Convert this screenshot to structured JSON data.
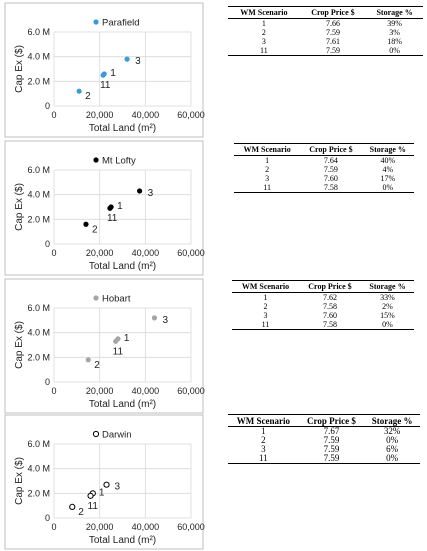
{
  "panels": [
    {
      "chart": {
        "type": "scatter",
        "legend": "Parafield",
        "marker": "filled",
        "color": "#3a9bd9",
        "xlabel": "Total Land (m²)",
        "ylabel": "Cap Ex ($)",
        "xticks": [
          "0",
          "20,000",
          "40,000",
          "60,000"
        ],
        "yticks": [
          "0",
          "2.0 M",
          "4.0 M",
          "6.0 M"
        ],
        "xlim": [
          0,
          60000
        ],
        "ylim": [
          0,
          6000000
        ],
        "points": [
          {
            "label": "1",
            "x": 22000,
            "y": 2600000
          },
          {
            "label": "2",
            "x": 11000,
            "y": 1200000
          },
          {
            "label": "3",
            "x": 32000,
            "y": 3800000
          },
          {
            "label": "11",
            "x": 21500,
            "y": 2500000
          }
        ]
      },
      "table": {
        "headers": [
          "WM Scenario",
          "Crop Price $",
          "Storage %"
        ],
        "rows": [
          [
            "1",
            "7.66",
            "39%"
          ],
          [
            "2",
            "7.59",
            "3%"
          ],
          [
            "3",
            "7.61",
            "18%"
          ],
          [
            "11",
            "7.59",
            "0%"
          ]
        ]
      }
    },
    {
      "chart": {
        "type": "scatter",
        "legend": "Mt Lofty",
        "marker": "filled",
        "color": "#000000",
        "xlabel": "Total Land (m²)",
        "ylabel": "Cap Ex ($)",
        "xticks": [
          "0",
          "20,000",
          "40,000",
          "60,000"
        ],
        "yticks": [
          "0",
          "2.0 M",
          "4.0 M",
          "6.0 M"
        ],
        "xlim": [
          0,
          60000
        ],
        "ylim": [
          0,
          6000000
        ],
        "points": [
          {
            "label": "1",
            "x": 25000,
            "y": 3000000
          },
          {
            "label": "2",
            "x": 14000,
            "y": 1600000
          },
          {
            "label": "3",
            "x": 37500,
            "y": 4300000
          },
          {
            "label": "11",
            "x": 24500,
            "y": 2900000
          }
        ]
      },
      "table": {
        "headers": [
          "WM Scenario",
          "Crop Price $",
          "Storage %"
        ],
        "rows": [
          [
            "1",
            "7.64",
            "40%"
          ],
          [
            "2",
            "7.59",
            "4%"
          ],
          [
            "3",
            "7.60",
            "17%"
          ],
          [
            "11",
            "7.58",
            "0%"
          ]
        ]
      }
    },
    {
      "chart": {
        "type": "scatter",
        "legend": "Hobart",
        "marker": "filled",
        "color": "#a6a6a6",
        "xlabel": "Total Land (m²)",
        "ylabel": "Cap Ex ($)",
        "xticks": [
          "0",
          "20,000",
          "40,000",
          "60,000"
        ],
        "yticks": [
          "0",
          "2.0 M",
          "4.0 M",
          "6.0 M"
        ],
        "xlim": [
          0,
          60000
        ],
        "ylim": [
          0,
          6000000
        ],
        "points": [
          {
            "label": "1",
            "x": 28000,
            "y": 3500000
          },
          {
            "label": "2",
            "x": 15000,
            "y": 1800000
          },
          {
            "label": "3",
            "x": 44000,
            "y": 5200000
          },
          {
            "label": "11",
            "x": 27000,
            "y": 3300000
          }
        ]
      },
      "table": {
        "headers": [
          "WM Scenario",
          "Crop Price $",
          "Storage %"
        ],
        "rows": [
          [
            "1",
            "7.62",
            "33%"
          ],
          [
            "2",
            "7.58",
            "2%"
          ],
          [
            "3",
            "7.60",
            "15%"
          ],
          [
            "11",
            "7.58",
            "0%"
          ]
        ]
      }
    },
    {
      "chart": {
        "type": "scatter",
        "legend": "Darwin",
        "marker": "hollow",
        "color": "#000000",
        "xlabel": "Total Land (m²)",
        "ylabel": "Cap Ex ($)",
        "xticks": [
          "0",
          "20,000",
          "40,000",
          "60,000"
        ],
        "yticks": [
          "0",
          "2.0 M",
          "4.0 M",
          "6.0 M"
        ],
        "xlim": [
          0,
          60000
        ],
        "ylim": [
          0,
          6000000
        ],
        "points": [
          {
            "label": "1",
            "x": 17000,
            "y": 2000000
          },
          {
            "label": "2",
            "x": 8000,
            "y": 900000
          },
          {
            "label": "3",
            "x": 23000,
            "y": 2700000
          },
          {
            "label": "11",
            "x": 16000,
            "y": 1800000
          }
        ]
      },
      "table": {
        "headers": [
          "WM Scenario",
          "Crop Price $",
          "Storage %"
        ],
        "rows": [
          [
            "1",
            "7.67",
            "32%"
          ],
          [
            "2",
            "7.59",
            "0%"
          ],
          [
            "3",
            "7.59",
            "6%"
          ],
          [
            "11",
            "7.59",
            "0%"
          ]
        ]
      }
    }
  ]
}
